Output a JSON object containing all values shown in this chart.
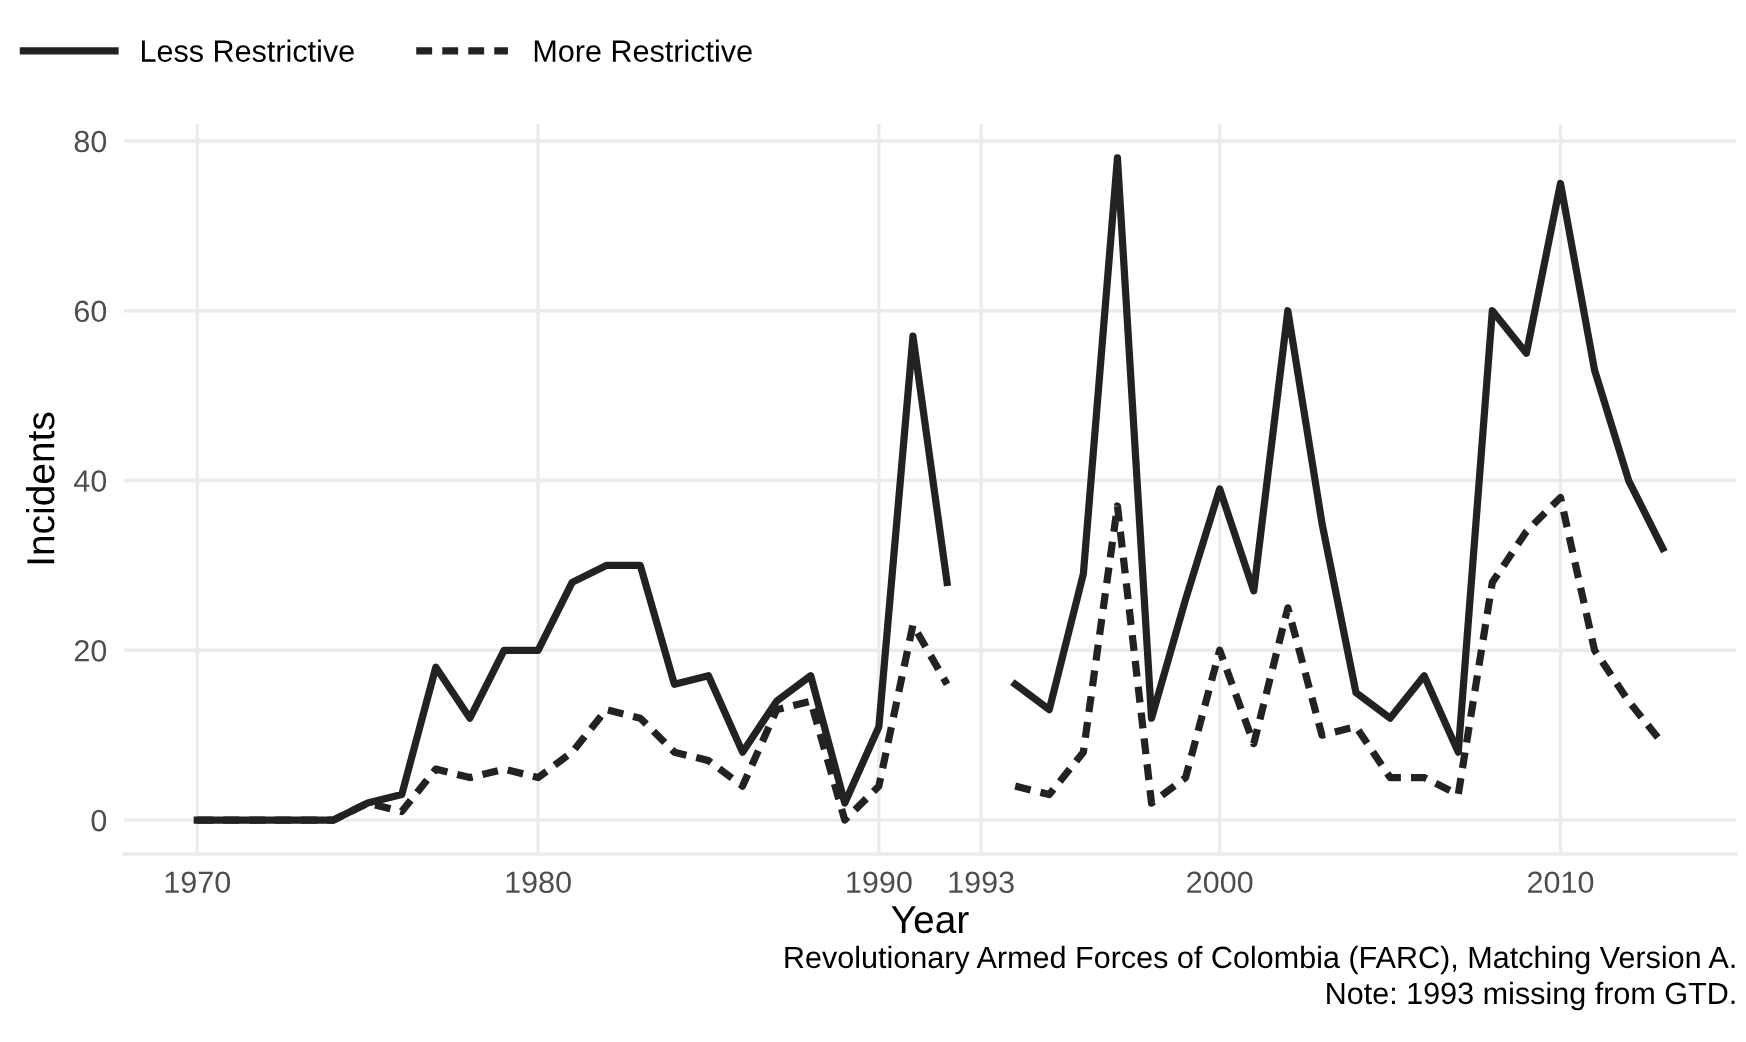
{
  "chart_data": {
    "type": "line",
    "xlabel": "Year",
    "ylabel": "Incidents",
    "x": [
      1970,
      1971,
      1972,
      1973,
      1974,
      1975,
      1976,
      1977,
      1978,
      1979,
      1980,
      1981,
      1982,
      1983,
      1984,
      1985,
      1986,
      1987,
      1988,
      1989,
      1990,
      1991,
      1992,
      1993,
      1994,
      1995,
      1996,
      1997,
      1998,
      1999,
      2000,
      2001,
      2002,
      2003,
      2004,
      2005,
      2006,
      2007,
      2008,
      2009,
      2010,
      2011,
      2012,
      2013
    ],
    "series": [
      {
        "name": "Less Restrictive",
        "color": "#222222",
        "line_style": "solid",
        "values": [
          0,
          0,
          0,
          0,
          0,
          2,
          3,
          18,
          12,
          20,
          20,
          28,
          30,
          30,
          16,
          17,
          8,
          14,
          17,
          2,
          11,
          57,
          28,
          null,
          16,
          13,
          29,
          78,
          12,
          26,
          39,
          27,
          60,
          35,
          15,
          12,
          17,
          8,
          60,
          55,
          75,
          53,
          40,
          32
        ]
      },
      {
        "name": "More Restrictive",
        "color": "#222222",
        "line_style": "dashed",
        "values": [
          0,
          0,
          0,
          0,
          0,
          2,
          1,
          6,
          5,
          6,
          5,
          8,
          13,
          12,
          8,
          7,
          4,
          13,
          14,
          0,
          4,
          23,
          16,
          null,
          4,
          3,
          8,
          37,
          2,
          5,
          20,
          9,
          25,
          10,
          11,
          5,
          5,
          3,
          28,
          34,
          38,
          20,
          14,
          9
        ]
      }
    ],
    "xlim": [
      1967.85,
      2015.15
    ],
    "ylim": [
      -4,
      82
    ],
    "xticks": [
      1970,
      1980,
      1990,
      1993,
      2000,
      2010
    ],
    "yticks": [
      0,
      20,
      40,
      60,
      80
    ],
    "grid": true,
    "legend": "top left",
    "annotations": [
      "Revolutionary Armed Forces of Colombia (FARC), Matching Version A.",
      "Note: 1993 missing from GTD."
    ]
  }
}
